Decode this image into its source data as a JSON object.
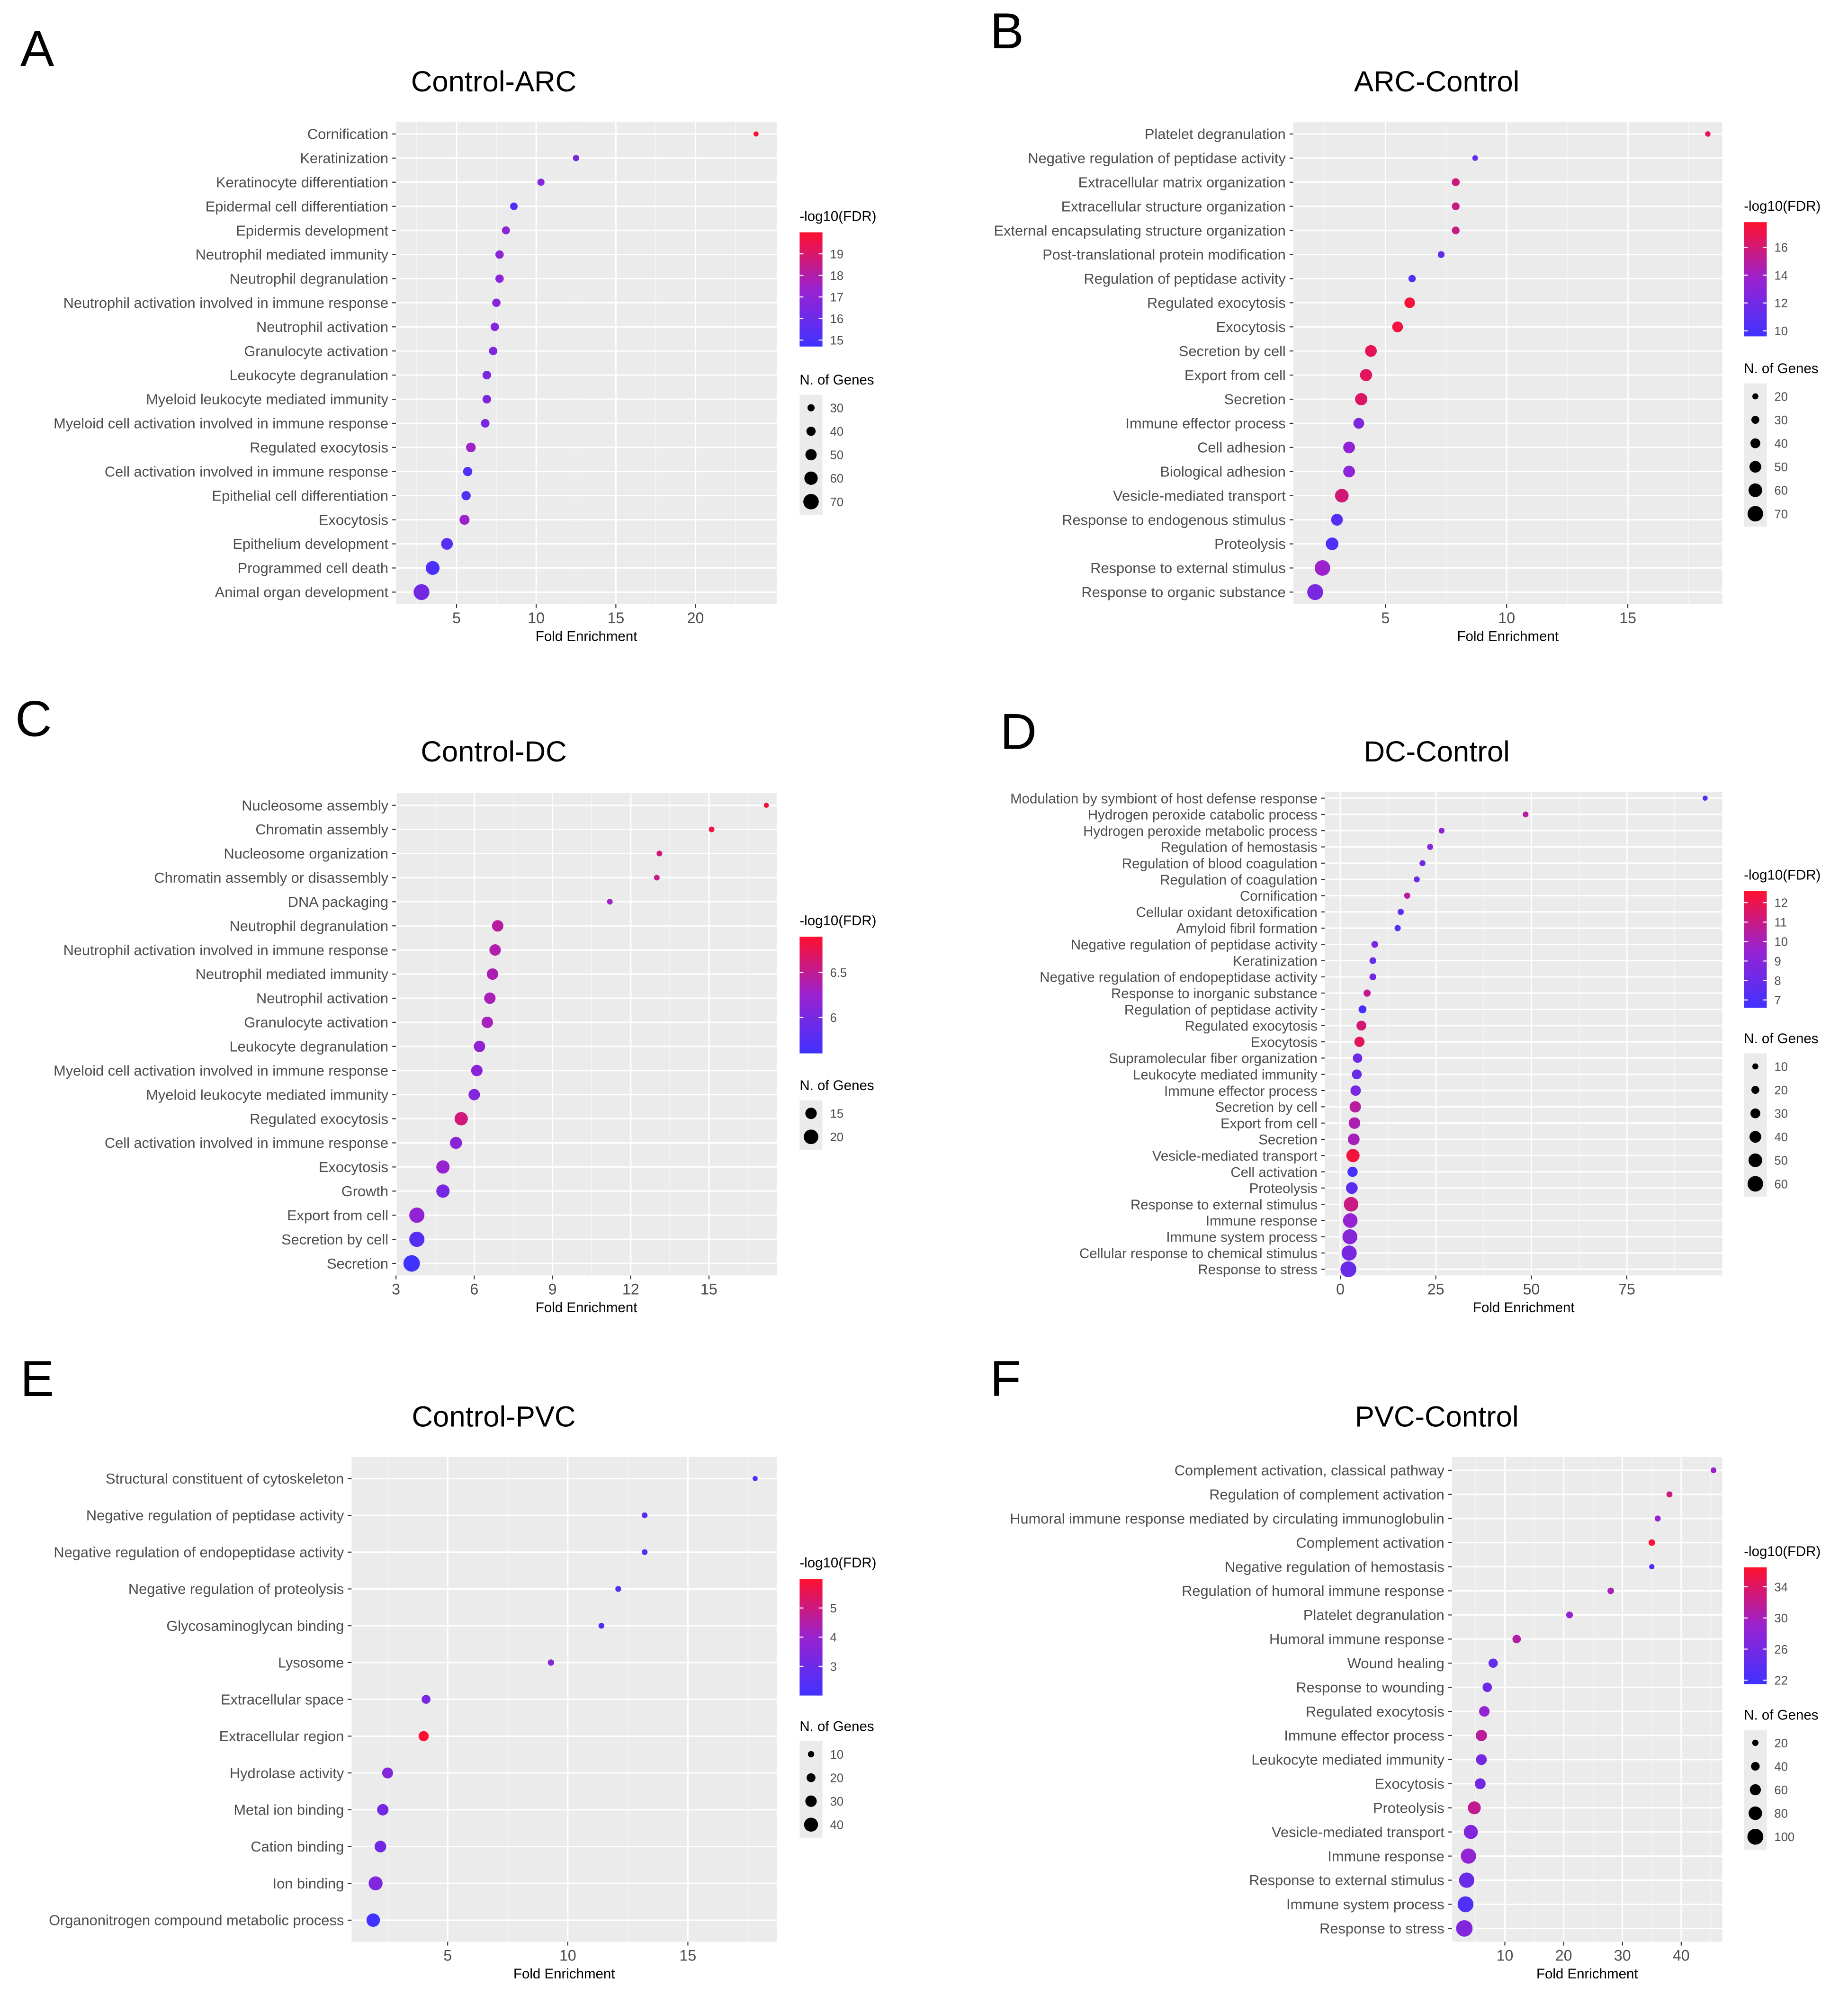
{
  "chart_data": [
    {
      "panel": "A",
      "title": "Control-ARC",
      "type": "scatter",
      "xlabel": "Fold Enrichment",
      "xlim": [
        1.2,
        25.1
      ],
      "xticks": [
        5,
        10,
        15,
        20
      ],
      "colorbar": {
        "label": "-log10(FDR)",
        "min": 14.7,
        "max": 20.0,
        "ticks": [
          15,
          16,
          17,
          18,
          19
        ]
      },
      "sizelegend": {
        "label": "N. of Genes",
        "min": 20,
        "max": 75,
        "values": [
          30,
          40,
          50,
          60,
          70
        ]
      },
      "points": [
        {
          "term": "Cornification",
          "x": 23.8,
          "fdr": 19.9,
          "n": 20
        },
        {
          "term": "Keratinization",
          "x": 12.5,
          "fdr": 16.6,
          "n": 26
        },
        {
          "term": "Keratinocyte differentiation",
          "x": 10.3,
          "fdr": 16.8,
          "n": 30
        },
        {
          "term": "Epidermal cell differentiation",
          "x": 8.6,
          "fdr": 15.1,
          "n": 32
        },
        {
          "term": "Epidermis development",
          "x": 8.1,
          "fdr": 16.9,
          "n": 34
        },
        {
          "term": "Neutrophil mediated immunity",
          "x": 7.7,
          "fdr": 17.0,
          "n": 36
        },
        {
          "term": "Neutrophil degranulation",
          "x": 7.7,
          "fdr": 16.9,
          "n": 36
        },
        {
          "term": "Neutrophil activation involved in immune response",
          "x": 7.5,
          "fdr": 16.8,
          "n": 36
        },
        {
          "term": "Neutrophil activation",
          "x": 7.4,
          "fdr": 16.7,
          "n": 36
        },
        {
          "term": "Granulocyte activation",
          "x": 7.3,
          "fdr": 16.6,
          "n": 36
        },
        {
          "term": "Leukocyte degranulation",
          "x": 6.9,
          "fdr": 16.5,
          "n": 37
        },
        {
          "term": "Myeloid leukocyte mediated immunity",
          "x": 6.9,
          "fdr": 16.5,
          "n": 37
        },
        {
          "term": "Myeloid cell activation involved in immune response",
          "x": 6.8,
          "fdr": 16.4,
          "n": 37
        },
        {
          "term": "Regulated exocytosis",
          "x": 5.9,
          "fdr": 17.5,
          "n": 42
        },
        {
          "term": "Cell activation involved in immune response",
          "x": 5.7,
          "fdr": 15.3,
          "n": 40
        },
        {
          "term": "Epithelial cell differentiation",
          "x": 5.6,
          "fdr": 15.2,
          "n": 40
        },
        {
          "term": "Exocytosis",
          "x": 5.5,
          "fdr": 17.4,
          "n": 44
        },
        {
          "term": "Epithelium development",
          "x": 4.4,
          "fdr": 15.4,
          "n": 52
        },
        {
          "term": "Programmed cell death",
          "x": 3.5,
          "fdr": 15.0,
          "n": 62
        },
        {
          "term": "Animal organ development",
          "x": 2.8,
          "fdr": 16.2,
          "n": 72
        }
      ]
    },
    {
      "panel": "B",
      "title": "ARC-Control",
      "type": "scatter",
      "xlabel": "Fold Enrichment",
      "xlim": [
        1.2,
        18.9
      ],
      "xticks": [
        5,
        10,
        15
      ],
      "colorbar": {
        "label": "-log10(FDR)",
        "min": 9.6,
        "max": 17.8,
        "ticks": [
          10,
          12,
          14,
          16
        ]
      },
      "sizelegend": {
        "label": "N. of Genes",
        "min": 15,
        "max": 75,
        "values": [
          20,
          30,
          40,
          50,
          60,
          70
        ]
      },
      "points": [
        {
          "term": "Platelet degranulation",
          "x": 18.3,
          "fdr": 16.8,
          "n": 17
        },
        {
          "term": "Negative regulation of peptidase activity",
          "x": 8.7,
          "fdr": 11.0,
          "n": 18
        },
        {
          "term": "Extracellular matrix organization",
          "x": 7.9,
          "fdr": 15.8,
          "n": 30
        },
        {
          "term": "Extracellular structure organization",
          "x": 7.9,
          "fdr": 15.6,
          "n": 29
        },
        {
          "term": "External encapsulating structure organization",
          "x": 7.9,
          "fdr": 15.6,
          "n": 29
        },
        {
          "term": "Post-translational protein modification",
          "x": 7.3,
          "fdr": 11.3,
          "n": 24
        },
        {
          "term": "Regulation of peptidase activity",
          "x": 6.1,
          "fdr": 10.5,
          "n": 27
        },
        {
          "term": "Regulated exocytosis",
          "x": 6.0,
          "fdr": 17.5,
          "n": 44
        },
        {
          "term": "Exocytosis",
          "x": 5.5,
          "fdr": 17.3,
          "n": 45
        },
        {
          "term": "Secretion by cell",
          "x": 4.4,
          "fdr": 16.8,
          "n": 50
        },
        {
          "term": "Export from cell",
          "x": 4.2,
          "fdr": 16.6,
          "n": 52
        },
        {
          "term": "Secretion",
          "x": 4.0,
          "fdr": 16.4,
          "n": 53
        },
        {
          "term": "Immune effector process",
          "x": 3.9,
          "fdr": 12.5,
          "n": 45
        },
        {
          "term": "Cell adhesion",
          "x": 3.5,
          "fdr": 13.3,
          "n": 50
        },
        {
          "term": "Biological adhesion",
          "x": 3.5,
          "fdr": 13.2,
          "n": 50
        },
        {
          "term": "Vesicle-mediated transport",
          "x": 3.2,
          "fdr": 16.0,
          "n": 60
        },
        {
          "term": "Response to endogenous stimulus",
          "x": 3.0,
          "fdr": 10.6,
          "n": 50
        },
        {
          "term": "Proteolysis",
          "x": 2.8,
          "fdr": 10.3,
          "n": 55
        },
        {
          "term": "Response to external stimulus",
          "x": 2.4,
          "fdr": 13.8,
          "n": 70
        },
        {
          "term": "Response to organic substance",
          "x": 2.1,
          "fdr": 12.3,
          "n": 72
        }
      ]
    },
    {
      "panel": "C",
      "title": "Control-DC",
      "type": "scatter",
      "xlabel": "Fold Enrichment",
      "xlim": [
        3.0,
        17.6
      ],
      "xticks": [
        3,
        6,
        9,
        12,
        15
      ],
      "colorbar": {
        "label": "-log10(FDR)",
        "min": 5.6,
        "max": 6.9,
        "ticks": [
          6.0,
          6.5
        ]
      },
      "sizelegend": {
        "label": "N. of Genes",
        "min": 5,
        "max": 23,
        "values": [
          15,
          20
        ]
      },
      "points": [
        {
          "term": "Nucleosome assembly",
          "x": 17.2,
          "fdr": 6.85,
          "n": 5
        },
        {
          "term": "Chromatin assembly",
          "x": 15.1,
          "fdr": 6.8,
          "n": 6
        },
        {
          "term": "Nucleosome organization",
          "x": 13.1,
          "fdr": 6.6,
          "n": 6
        },
        {
          "term": "Chromatin assembly or disassembly",
          "x": 13.0,
          "fdr": 6.55,
          "n": 6
        },
        {
          "term": "DNA packaging",
          "x": 11.2,
          "fdr": 6.3,
          "n": 6
        },
        {
          "term": "Neutrophil degranulation",
          "x": 6.9,
          "fdr": 6.45,
          "n": 15
        },
        {
          "term": "Neutrophil activation involved in immune response",
          "x": 6.8,
          "fdr": 6.4,
          "n": 15
        },
        {
          "term": "Neutrophil mediated immunity",
          "x": 6.7,
          "fdr": 6.38,
          "n": 15
        },
        {
          "term": "Neutrophil activation",
          "x": 6.6,
          "fdr": 6.35,
          "n": 15
        },
        {
          "term": "Granulocyte activation",
          "x": 6.5,
          "fdr": 6.33,
          "n": 15
        },
        {
          "term": "Leukocyte degranulation",
          "x": 6.2,
          "fdr": 6.2,
          "n": 15
        },
        {
          "term": "Myeloid cell activation involved in immune response",
          "x": 6.1,
          "fdr": 6.15,
          "n": 15
        },
        {
          "term": "Myeloid leukocyte mediated immunity",
          "x": 6.0,
          "fdr": 6.1,
          "n": 15
        },
        {
          "term": "Regulated exocytosis",
          "x": 5.5,
          "fdr": 6.6,
          "n": 18
        },
        {
          "term": "Cell activation involved in immune response",
          "x": 5.3,
          "fdr": 6.15,
          "n": 16
        },
        {
          "term": "Exocytosis",
          "x": 4.8,
          "fdr": 6.25,
          "n": 18
        },
        {
          "term": "Growth",
          "x": 4.8,
          "fdr": 6.0,
          "n": 18
        },
        {
          "term": "Export from cell",
          "x": 3.8,
          "fdr": 6.2,
          "n": 21
        },
        {
          "term": "Secretion by cell",
          "x": 3.8,
          "fdr": 5.75,
          "n": 21
        },
        {
          "term": "Secretion",
          "x": 3.6,
          "fdr": 5.6,
          "n": 23
        }
      ]
    },
    {
      "panel": "D",
      "title": "DC-Control",
      "type": "scatter",
      "xlabel": "Fold Enrichment",
      "xlim": [
        -4,
        100
      ],
      "xticks": [
        0,
        25,
        50,
        75
      ],
      "colorbar": {
        "label": "-log10(FDR)",
        "min": 6.6,
        "max": 12.6,
        "ticks": [
          7,
          8,
          9,
          10,
          11,
          12
        ]
      },
      "sizelegend": {
        "label": "N. of Genes",
        "min": 5,
        "max": 65,
        "values": [
          10,
          20,
          30,
          40,
          50,
          60
        ]
      },
      "points": [
        {
          "term": "Modulation by symbiont of host defense response",
          "x": 95.5,
          "fdr": 7.0,
          "n": 5
        },
        {
          "term": "Hydrogen peroxide catabolic process",
          "x": 48.5,
          "fdr": 10.5,
          "n": 9
        },
        {
          "term": "Hydrogen peroxide metabolic process",
          "x": 26.5,
          "fdr": 9.2,
          "n": 9
        },
        {
          "term": "Regulation of hemostasis",
          "x": 23.5,
          "fdr": 9.0,
          "n": 10
        },
        {
          "term": "Regulation of blood coagulation",
          "x": 21.5,
          "fdr": 8.3,
          "n": 10
        },
        {
          "term": "Regulation of coagulation",
          "x": 20.0,
          "fdr": 8.0,
          "n": 10
        },
        {
          "term": "Cornification",
          "x": 17.5,
          "fdr": 10.5,
          "n": 11
        },
        {
          "term": "Cellular oxidant detoxification",
          "x": 15.8,
          "fdr": 7.6,
          "n": 11
        },
        {
          "term": "Amyloid fibril formation",
          "x": 15.0,
          "fdr": 7.3,
          "n": 11
        },
        {
          "term": "Negative regulation of peptidase activity",
          "x": 9.0,
          "fdr": 8.5,
          "n": 14
        },
        {
          "term": "Keratinization",
          "x": 8.5,
          "fdr": 8.0,
          "n": 14
        },
        {
          "term": "Negative regulation of endopeptidase activity",
          "x": 8.5,
          "fdr": 8.2,
          "n": 14
        },
        {
          "term": "Response to inorganic substance",
          "x": 7.0,
          "fdr": 10.8,
          "n": 16
        },
        {
          "term": "Regulation of peptidase activity",
          "x": 5.8,
          "fdr": 6.8,
          "n": 20
        },
        {
          "term": "Regulated exocytosis",
          "x": 5.5,
          "fdr": 11.3,
          "n": 30
        },
        {
          "term": "Exocytosis",
          "x": 5.0,
          "fdr": 11.7,
          "n": 32
        },
        {
          "term": "Supramolecular fiber organization",
          "x": 4.5,
          "fdr": 8.2,
          "n": 28
        },
        {
          "term": "Leukocyte mediated immunity",
          "x": 4.3,
          "fdr": 8.0,
          "n": 30
        },
        {
          "term": "Immune effector process",
          "x": 4.0,
          "fdr": 8.5,
          "n": 33
        },
        {
          "term": "Secretion by cell",
          "x": 3.9,
          "fdr": 10.5,
          "n": 38
        },
        {
          "term": "Export from cell",
          "x": 3.7,
          "fdr": 10.2,
          "n": 39
        },
        {
          "term": "Secretion",
          "x": 3.5,
          "fdr": 10.0,
          "n": 40
        },
        {
          "term": "Vesicle-mediated transport",
          "x": 3.3,
          "fdr": 12.3,
          "n": 48
        },
        {
          "term": "Cell activation",
          "x": 3.2,
          "fdr": 6.8,
          "n": 32
        },
        {
          "term": "Proteolysis",
          "x": 3.0,
          "fdr": 7.5,
          "n": 40
        },
        {
          "term": "Response to external stimulus",
          "x": 2.8,
          "fdr": 11.0,
          "n": 55
        },
        {
          "term": "Immune response",
          "x": 2.6,
          "fdr": 9.5,
          "n": 55
        },
        {
          "term": "Immune system process",
          "x": 2.5,
          "fdr": 9.0,
          "n": 57
        },
        {
          "term": "Cellular response to chemical stimulus",
          "x": 2.3,
          "fdr": 8.5,
          "n": 58
        },
        {
          "term": "Response to stress",
          "x": 2.1,
          "fdr": 8.0,
          "n": 62
        }
      ]
    },
    {
      "panel": "E",
      "title": "Control-PVC",
      "type": "scatter",
      "xlabel": "Fold Enrichment",
      "xlim": [
        1.0,
        18.7
      ],
      "xticks": [
        5,
        10,
        15
      ],
      "colorbar": {
        "label": "-log10(FDR)",
        "min": 2.0,
        "max": 6.0,
        "ticks": [
          3,
          4,
          5
        ]
      },
      "sizelegend": {
        "label": "N. of Genes",
        "min": 5,
        "max": 45,
        "values": [
          10,
          20,
          30,
          40
        ]
      },
      "points": [
        {
          "term": "Structural constituent of cytoskeleton",
          "x": 17.8,
          "fdr": 2.2,
          "n": 5
        },
        {
          "term": "Negative regulation of peptidase activity",
          "x": 13.2,
          "fdr": 2.6,
          "n": 8
        },
        {
          "term": "Negative regulation of endopeptidase activity",
          "x": 13.2,
          "fdr": 2.6,
          "n": 8
        },
        {
          "term": "Negative regulation of proteolysis",
          "x": 12.1,
          "fdr": 2.5,
          "n": 8
        },
        {
          "term": "Glycosaminoglycan binding",
          "x": 11.4,
          "fdr": 2.2,
          "n": 8
        },
        {
          "term": "Lysosome",
          "x": 9.3,
          "fdr": 3.6,
          "n": 10
        },
        {
          "term": "Extracellular space",
          "x": 4.1,
          "fdr": 3.3,
          "n": 20
        },
        {
          "term": "Extracellular region",
          "x": 4.0,
          "fdr": 6.0,
          "n": 25
        },
        {
          "term": "Hydrolase activity",
          "x": 2.5,
          "fdr": 3.5,
          "n": 28
        },
        {
          "term": "Metal ion binding",
          "x": 2.3,
          "fdr": 3.2,
          "n": 30
        },
        {
          "term": "Cation binding",
          "x": 2.2,
          "fdr": 3.1,
          "n": 31
        },
        {
          "term": "Ion binding",
          "x": 2.0,
          "fdr": 3.4,
          "n": 40
        },
        {
          "term": "Organonitrogen compound metabolic process",
          "x": 1.9,
          "fdr": 2.0,
          "n": 38
        }
      ]
    },
    {
      "panel": "F",
      "title": "PVC-Control",
      "type": "scatter",
      "xlabel": "Fold Enrichment",
      "xlim": [
        1.0,
        47.0
      ],
      "xticks": [
        10,
        20,
        30,
        40
      ],
      "colorbar": {
        "label": "-log10(FDR)",
        "min": 21.5,
        "max": 36.5,
        "ticks": [
          22,
          26,
          30,
          34
        ]
      },
      "sizelegend": {
        "label": "N. of Genes",
        "min": 10,
        "max": 105,
        "values": [
          20,
          40,
          60,
          80,
          100
        ]
      },
      "points": [
        {
          "term": "Complement activation, classical pathway",
          "x": 45.5,
          "fdr": 29.0,
          "n": 16
        },
        {
          "term": "Regulation of complement activation",
          "x": 38.0,
          "fdr": 33.0,
          "n": 18
        },
        {
          "term": "Humoral immune response mediated by circulating immunoglobulin",
          "x": 36.0,
          "fdr": 29.0,
          "n": 18
        },
        {
          "term": "Complement activation",
          "x": 35.0,
          "fdr": 36.0,
          "n": 22
        },
        {
          "term": "Negative regulation of hemostasis",
          "x": 35.0,
          "fdr": 22.0,
          "n": 12
        },
        {
          "term": "Regulation of humoral immune response",
          "x": 28.0,
          "fdr": 30.0,
          "n": 22
        },
        {
          "term": "Platelet degranulation",
          "x": 21.0,
          "fdr": 29.0,
          "n": 24
        },
        {
          "term": "Humoral immune response",
          "x": 12.0,
          "fdr": 31.0,
          "n": 38
        },
        {
          "term": "Wound healing",
          "x": 8.0,
          "fdr": 24.5,
          "n": 45
        },
        {
          "term": "Response to wounding",
          "x": 7.0,
          "fdr": 25.5,
          "n": 46
        },
        {
          "term": "Regulated exocytosis",
          "x": 6.5,
          "fdr": 28.5,
          "n": 55
        },
        {
          "term": "Immune effector process",
          "x": 6.0,
          "fdr": 31.5,
          "n": 62
        },
        {
          "term": "Leukocyte mediated immunity",
          "x": 6.0,
          "fdr": 26.0,
          "n": 58
        },
        {
          "term": "Exocytosis",
          "x": 5.8,
          "fdr": 26.0,
          "n": 58
        },
        {
          "term": "Proteolysis",
          "x": 4.8,
          "fdr": 32.0,
          "n": 75
        },
        {
          "term": "Vesicle-mediated transport",
          "x": 4.2,
          "fdr": 27.0,
          "n": 85
        },
        {
          "term": "Immune response",
          "x": 3.8,
          "fdr": 28.5,
          "n": 95
        },
        {
          "term": "Response to external stimulus",
          "x": 3.5,
          "fdr": 25.0,
          "n": 95
        },
        {
          "term": "Immune system process",
          "x": 3.3,
          "fdr": 23.0,
          "n": 100
        },
        {
          "term": "Response to stress",
          "x": 3.1,
          "fdr": 27.0,
          "n": 105
        }
      ]
    }
  ]
}
